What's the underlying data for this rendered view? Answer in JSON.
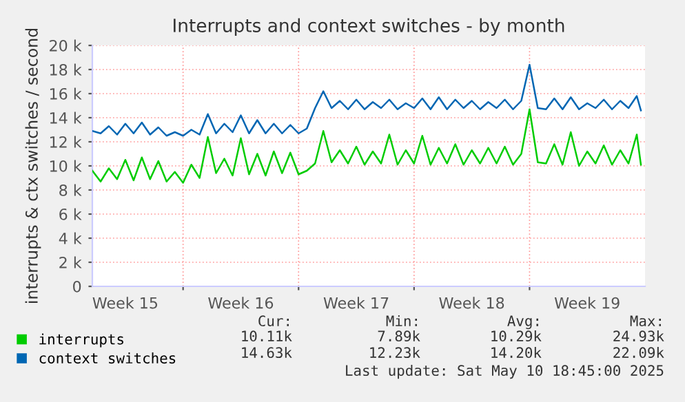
{
  "chart_data": {
    "type": "line",
    "title": "Interrupts and context switches - by month",
    "ylabel": "interrupts & ctx switches / second",
    "x": [
      "2025-04-07T12:00",
      "2025-04-08T00:00",
      "2025-04-08T12:00",
      "2025-04-09T00:00",
      "2025-04-09T12:00",
      "2025-04-10T00:00",
      "2025-04-10T12:00",
      "2025-04-11T00:00",
      "2025-04-11T12:00",
      "2025-04-12T00:00",
      "2025-04-12T12:00",
      "2025-04-13T00:00",
      "2025-04-13T12:00",
      "2025-04-14T00:00",
      "2025-04-14T12:00",
      "2025-04-15T00:00",
      "2025-04-15T12:00",
      "2025-04-16T00:00",
      "2025-04-16T12:00",
      "2025-04-17T00:00",
      "2025-04-17T12:00",
      "2025-04-18T00:00",
      "2025-04-18T12:00",
      "2025-04-19T00:00",
      "2025-04-19T12:00",
      "2025-04-20T00:00",
      "2025-04-20T12:00",
      "2025-04-21T00:00",
      "2025-04-21T12:00",
      "2025-04-22T00:00",
      "2025-04-22T12:00",
      "2025-04-23T00:00",
      "2025-04-23T12:00",
      "2025-04-24T00:00",
      "2025-04-24T12:00",
      "2025-04-25T00:00",
      "2025-04-25T12:00",
      "2025-04-26T00:00",
      "2025-04-26T12:00",
      "2025-04-27T00:00",
      "2025-04-27T12:00",
      "2025-04-28T00:00",
      "2025-04-28T12:00",
      "2025-04-29T00:00",
      "2025-04-29T12:00",
      "2025-04-30T00:00",
      "2025-04-30T12:00",
      "2025-05-01T00:00",
      "2025-05-01T12:00",
      "2025-05-02T00:00",
      "2025-05-02T12:00",
      "2025-05-03T00:00",
      "2025-05-03T12:00",
      "2025-05-04T00:00",
      "2025-05-04T12:00",
      "2025-05-05T00:00",
      "2025-05-05T12:00",
      "2025-05-06T00:00",
      "2025-05-06T12:00",
      "2025-05-07T00:00",
      "2025-05-07T12:00",
      "2025-05-08T00:00",
      "2025-05-08T12:00",
      "2025-05-09T00:00",
      "2025-05-09T12:00",
      "2025-05-10T00:00",
      "2025-05-10T12:00",
      "2025-05-10T18:00"
    ],
    "series": [
      {
        "name": "interrupts",
        "color": "#00cc00",
        "values": [
          9600,
          8700,
          9800,
          8900,
          10500,
          8800,
          10700,
          8900,
          10400,
          8700,
          9500,
          8600,
          10100,
          9000,
          12400,
          9400,
          10600,
          9200,
          12300,
          9300,
          11000,
          9200,
          11200,
          9400,
          11100,
          9300,
          9600,
          10200,
          12900,
          10300,
          11300,
          10200,
          11600,
          10100,
          11200,
          10200,
          12600,
          10100,
          11300,
          10200,
          12500,
          10100,
          11500,
          10200,
          11800,
          10100,
          11300,
          10200,
          11500,
          10200,
          11600,
          10100,
          11000,
          14700,
          10300,
          10200,
          11800,
          10100,
          12800,
          10000,
          11200,
          10200,
          11700,
          10100,
          11300,
          10200,
          12600,
          10100
        ]
      },
      {
        "name": "context switches",
        "color": "#0066b3",
        "values": [
          12900,
          12700,
          13300,
          12600,
          13500,
          12700,
          13600,
          12600,
          13200,
          12500,
          12800,
          12500,
          13000,
          12600,
          14300,
          12700,
          13500,
          12800,
          14200,
          12700,
          13800,
          12700,
          13500,
          12700,
          13400,
          12700,
          13100,
          14800,
          16200,
          14800,
          15400,
          14700,
          15500,
          14700,
          15300,
          14800,
          15500,
          14700,
          15200,
          14800,
          15600,
          14700,
          15700,
          14700,
          15500,
          14800,
          15400,
          14700,
          15300,
          14800,
          15500,
          14700,
          15400,
          18400,
          14800,
          14700,
          15600,
          14700,
          15700,
          14700,
          15200,
          14800,
          15500,
          14700,
          15400,
          14800,
          15800,
          14600
        ]
      }
    ],
    "xlim": [
      "2025-04-07T12:00",
      "2025-05-11T00:00"
    ],
    "xticks": [
      {
        "value": "2025-04-09T12:00",
        "label": "Week 15"
      },
      {
        "value": "2025-04-13T00:00",
        "label": null
      },
      {
        "value": "2025-04-16T12:00",
        "label": "Week 16"
      },
      {
        "value": "2025-04-20T00:00",
        "label": null
      },
      {
        "value": "2025-04-23T12:00",
        "label": "Week 17"
      },
      {
        "value": "2025-04-27T00:00",
        "label": null
      },
      {
        "value": "2025-04-30T12:00",
        "label": "Week 18"
      },
      {
        "value": "2025-05-04T00:00",
        "label": null
      },
      {
        "value": "2025-05-07T12:00",
        "label": "Week 19"
      }
    ],
    "ylim": [
      0,
      20000
    ],
    "yticks": [
      0,
      {
        "value": 2000,
        "label": "2 k"
      },
      {
        "value": 4000,
        "label": "4 k"
      },
      {
        "value": 6000,
        "label": "6 k"
      },
      {
        "value": 8000,
        "label": "8 k"
      },
      {
        "value": 10000,
        "label": "10 k"
      },
      {
        "value": 12000,
        "label": "12 k"
      },
      {
        "value": 14000,
        "label": "14 k"
      },
      {
        "value": 16000,
        "label": "16 k"
      },
      {
        "value": 18000,
        "label": "18 k"
      },
      {
        "value": 20000,
        "label": "20 k"
      }
    ],
    "grid": true,
    "legend": "bottom left",
    "marker": "none",
    "line_style": "solid",
    "annotations": [
      "Cur:",
      "Min:",
      "Avg:",
      "Max:",
      "10.11k",
      "7.89k",
      "10.29k",
      "24.93k",
      "14.63k",
      "12.23k",
      "14.20k",
      "22.09k",
      "Last update: Sat May 10 18:45:00 2025"
    ]
  }
}
